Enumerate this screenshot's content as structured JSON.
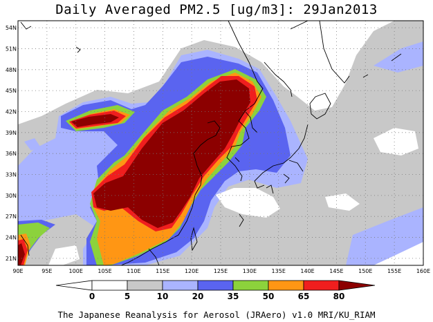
{
  "title": "Daily Averaged PM2.5 [ug/m3]: 29Jan2013",
  "footer": "The Japanese Reanalysis for Aerosol (JRAero) v1.0 MRI/KU_RIAM",
  "map": {
    "lon_range": [
      90,
      160
    ],
    "lat_range": [
      20,
      55
    ],
    "lon_labels": [
      "90E",
      "95E",
      "100E",
      "105E",
      "110E",
      "115E",
      "120E",
      "125E",
      "130E",
      "135E",
      "140E",
      "145E",
      "150E",
      "155E",
      "160E"
    ],
    "lat_labels": [
      "21N",
      "24N",
      "27N",
      "30N",
      "33N",
      "36N",
      "39N",
      "42N",
      "45N",
      "48N",
      "51N",
      "54N"
    ],
    "lat_values": [
      21,
      24,
      27,
      30,
      33,
      36,
      39,
      42,
      45,
      48,
      51,
      54
    ]
  },
  "colorbar": {
    "levels": [
      "0",
      "5",
      "10",
      "20",
      "35",
      "50",
      "65",
      "80"
    ],
    "colors": [
      "#ffffff",
      "#c8c8c8",
      "#aab4ff",
      "#5a64f0",
      "#8cd23c",
      "#ff9614",
      "#f01e1e",
      "#8c0000"
    ]
  }
}
